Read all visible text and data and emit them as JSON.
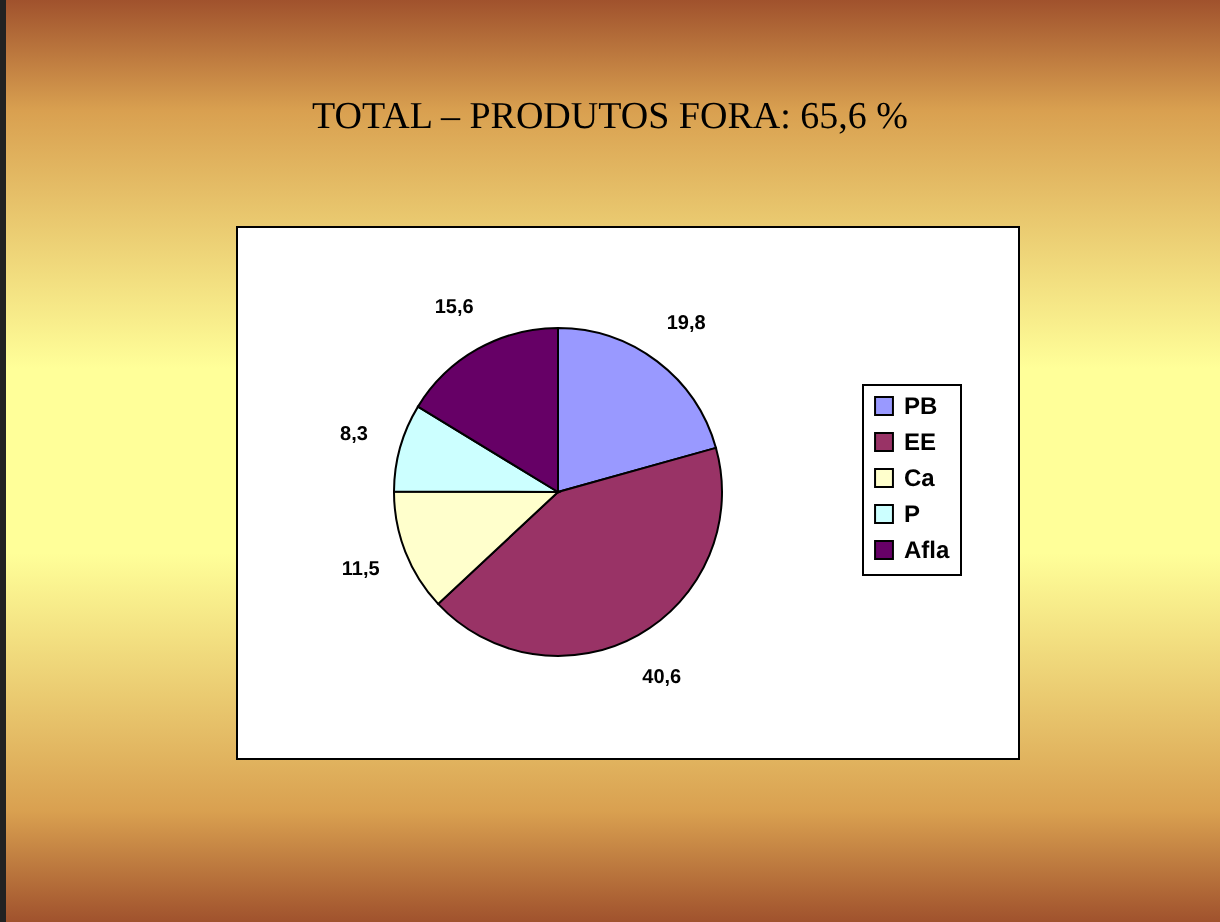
{
  "chart_data": {
    "type": "pie",
    "title": "TOTAL – PRODUTOS FORA: 65,6 %",
    "categories": [
      "PB",
      "EE",
      "Ca",
      "P",
      "Afla"
    ],
    "values": [
      19.8,
      40.6,
      11.5,
      8.3,
      15.6
    ],
    "colors": [
      "#9999ff",
      "#993366",
      "#ffffcc",
      "#ccffff",
      "#660066"
    ],
    "value_labels": [
      "19,8",
      "40,6",
      "11,5",
      "8,3",
      "15,6"
    ],
    "legend": "right"
  }
}
